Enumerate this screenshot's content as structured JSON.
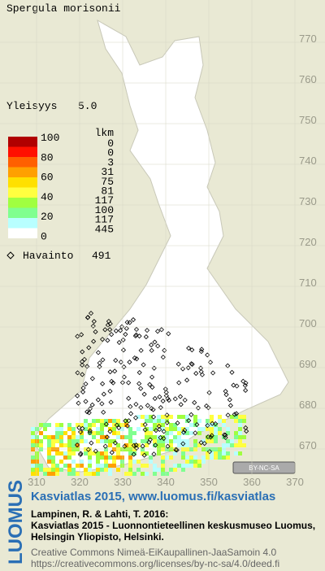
{
  "title": "Spergula morisonii",
  "frequency": {
    "label": "Yleisyys",
    "value": "5.0"
  },
  "legend": {
    "levels": [
      100,
      80,
      60,
      40,
      20,
      0
    ],
    "count_header": "lkm",
    "counts": [
      0,
      0,
      3,
      31,
      75,
      81,
      117,
      100,
      117,
      445
    ],
    "colors": [
      "#b00000",
      "#ff1000",
      "#ff6000",
      "#ffa000",
      "#ffe000",
      "#ffff40",
      "#a0ff40",
      "#80ff90",
      "#b8ffff",
      "#ffffff"
    ]
  },
  "observations": {
    "label": "Havainto",
    "count": 491
  },
  "y_axis": [
    770,
    760,
    750,
    740,
    730,
    720,
    710,
    700,
    690,
    680,
    670
  ],
  "x_axis": [
    310,
    320,
    330,
    340,
    350,
    360,
    370
  ],
  "license_badge": "BY-NC-SA",
  "footer": {
    "logo": "LUOMUS",
    "headline": "Kasviatlas 2015, www.luomus.fi/kasviatlas",
    "citation": [
      "Lampinen, R. & Lahti, T. 2016:",
      "Kasviatlas 2015 - Luonnontieteellinen keskusmuseo Luomus,",
      "Helsingin Yliopisto, Helsinki."
    ],
    "license": [
      "Creative Commons Nimeä-EiKaupallinen-JaaSamoin 4.0",
      "https://creativecommons.org/licenses/by-nc-sa/4.0/deed.fi"
    ]
  }
}
